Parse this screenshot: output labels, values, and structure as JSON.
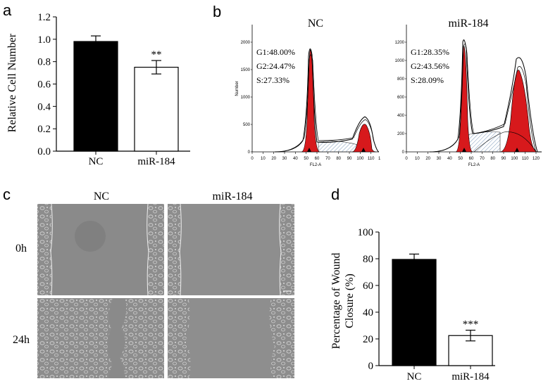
{
  "panels": {
    "a": "a",
    "b": "b",
    "c": "c",
    "d": "d"
  },
  "panel_b": {
    "NC": {
      "title": "NC",
      "g1": "G1:48.00%",
      "g2": "G2:24.47%",
      "s": "S:27.33%",
      "yticks": [
        "0",
        "500",
        "1000",
        "1500",
        "2000"
      ],
      "xticks": [
        "0",
        "10",
        "20",
        "30",
        "40",
        "50",
        "60",
        "70",
        "80",
        "90",
        "100",
        "110",
        "120"
      ],
      "xlabel": "FL2-A",
      "ylabel": "Number"
    },
    "miR": {
      "title": "miR-184",
      "g1": "G1:28.35%",
      "g2": "G2:43.56%",
      "s": "S:28.09%",
      "yticks": [
        "0",
        "200",
        "400",
        "600",
        "800",
        "1000",
        "1200"
      ],
      "xticks": [
        "0",
        "10",
        "20",
        "30",
        "40",
        "50",
        "60",
        "70",
        "80",
        "90",
        "100",
        "110",
        "120"
      ],
      "xlabel": "FL2-A",
      "ylabel": "Number"
    }
  },
  "panel_c": {
    "col_nc": "NC",
    "col_mir": "miR-184",
    "row_0h": "0h",
    "row_24h": "24h"
  },
  "chart_data": [
    {
      "type": "bar",
      "panel": "a",
      "categories": [
        "NC",
        "miR-184"
      ],
      "values": [
        0.98,
        0.75
      ],
      "errors": [
        0.05,
        0.06
      ],
      "colors": [
        "#000000",
        "#ffffff"
      ],
      "significance": [
        "",
        "**"
      ],
      "ylabel": "Relative Cell Number",
      "ylim": [
        0,
        1.2
      ],
      "yticks": [
        "0.0",
        "0.2",
        "0.4",
        "0.6",
        "0.8",
        "1.0",
        "1.2"
      ]
    },
    {
      "type": "bar",
      "panel": "d",
      "categories": [
        "NC",
        "miR-184"
      ],
      "values": [
        79.5,
        22.5
      ],
      "errors": [
        4.0,
        4.0
      ],
      "colors": [
        "#000000",
        "#ffffff"
      ],
      "significance": [
        "",
        "***"
      ],
      "ylabel": "Percentage of Wound Closure (%)",
      "ylabel_lines": [
        "Percentage of Wound",
        "Closure (%)"
      ],
      "ylim": [
        0,
        100
      ],
      "yticks": [
        "0",
        "20",
        "40",
        "60",
        "80",
        "100"
      ]
    }
  ]
}
